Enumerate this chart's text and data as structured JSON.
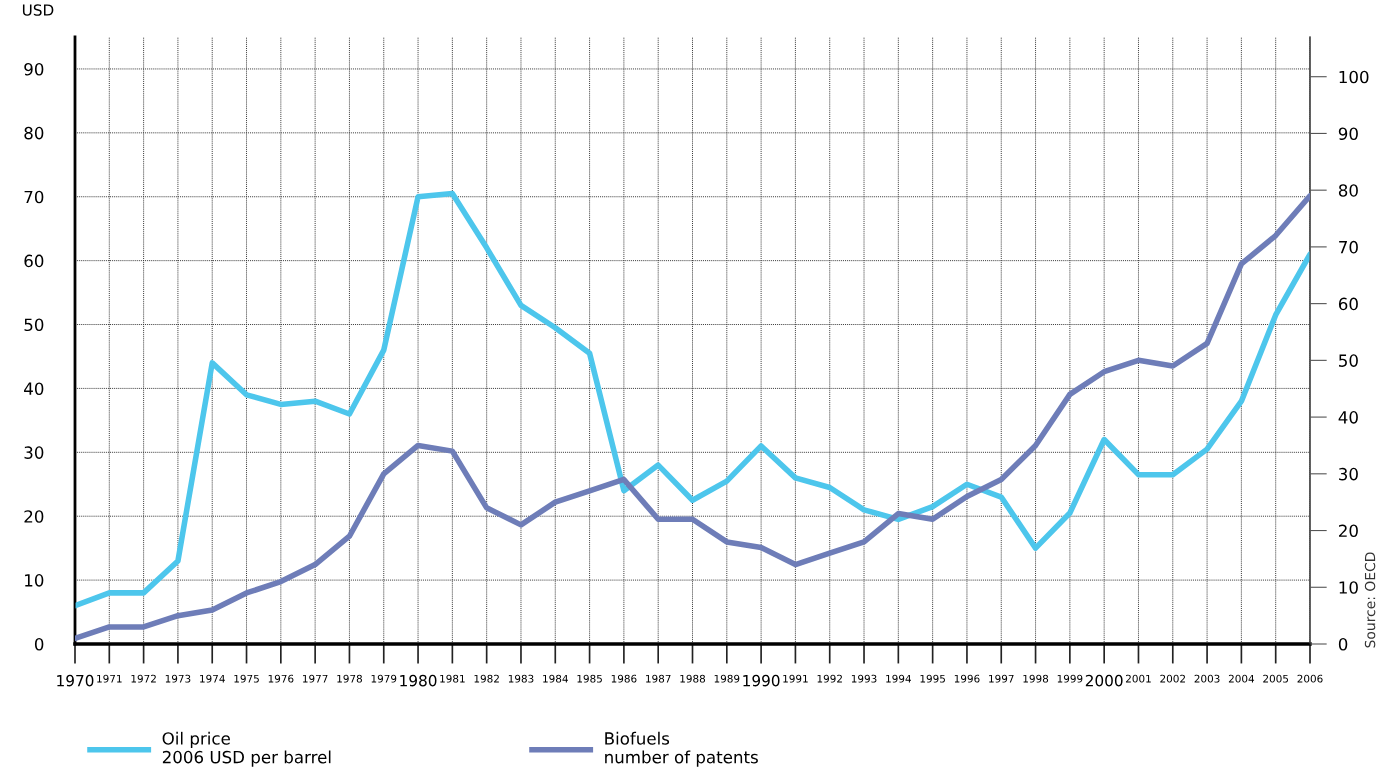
{
  "chart_data": {
    "type": "line",
    "ylabel": "USD",
    "categories": [
      "1970",
      "1971",
      "1972",
      "1973",
      "1974",
      "1975",
      "1976",
      "1977",
      "1978",
      "1979",
      "1980",
      "1981",
      "1982",
      "1983",
      "1984",
      "1985",
      "1986",
      "1987",
      "1988",
      "1989",
      "1990",
      "1991",
      "1992",
      "1993",
      "1994",
      "1995",
      "1996",
      "1997",
      "1998",
      "1999",
      "2000",
      "2001",
      "2002",
      "2003",
      "2004",
      "2005",
      "2006"
    ],
    "series": [
      {
        "name": "Oil price\n2006 USD per barrel",
        "color": "#4dc6ec",
        "values": [
          6,
          8,
          8,
          13,
          44,
          39,
          37.5,
          38,
          36,
          46,
          70,
          70.5,
          62,
          53,
          49.5,
          45.5,
          24,
          28,
          22.5,
          25.5,
          31,
          26,
          24.5,
          21,
          19.5,
          21.5,
          25,
          23,
          15,
          20.5,
          32,
          26.5,
          26.5,
          30.5,
          38,
          51.5,
          61
        ]
      },
      {
        "name": "Biofuels\nnumber of patents",
        "color": "#6e7db8",
        "axis": "y2",
        "values": [
          1,
          3,
          3,
          5,
          6,
          9,
          11,
          14,
          19,
          30,
          35,
          34,
          24,
          21,
          25,
          27,
          29,
          22,
          22,
          18,
          17,
          14,
          16,
          18,
          23,
          22,
          26,
          29,
          35,
          44,
          48,
          50,
          49,
          53,
          67,
          72,
          79
        ]
      }
    ],
    "ylim": [
      0,
      95
    ],
    "yticks": [
      0,
      10,
      20,
      30,
      40,
      50,
      60,
      70,
      80,
      90
    ],
    "y2lim": [
      0,
      107
    ],
    "y2ticks": [
      0,
      10,
      20,
      30,
      40,
      50,
      60,
      70,
      80,
      90,
      100
    ],
    "grid": true,
    "legend": "bottom",
    "line_style": "solid",
    "marker": "none",
    "annotations": [
      "Source: OECD"
    ]
  }
}
